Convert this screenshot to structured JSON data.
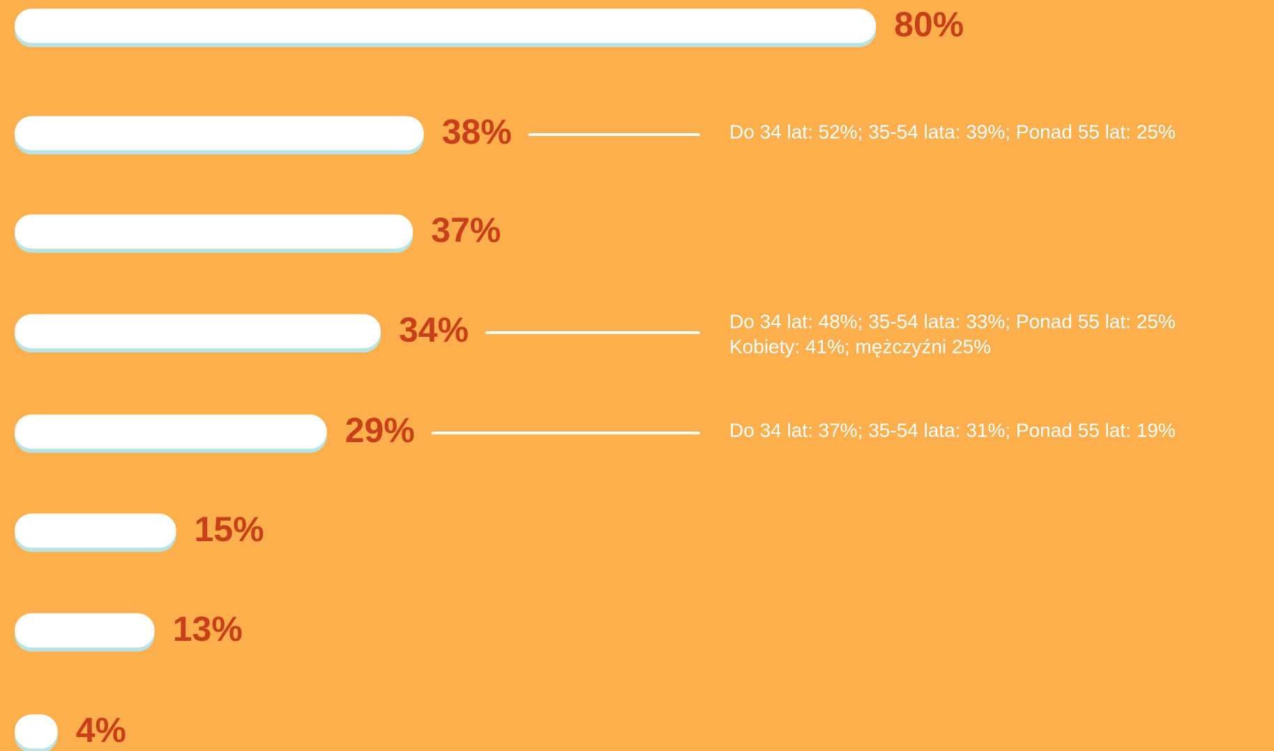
{
  "chart_data": {
    "type": "bar",
    "orientation": "horizontal",
    "categories": [
      null,
      null,
      null,
      null,
      null,
      null,
      null,
      null
    ],
    "values": [
      80,
      38,
      37,
      34,
      29,
      15,
      13,
      4
    ],
    "value_labels": [
      "80%",
      "38%",
      "37%",
      "34%",
      "29%",
      "15%",
      "13%",
      "4%"
    ],
    "color": "#ffffff",
    "label_color": "#c8401a",
    "annotations": [
      null,
      [
        "Do 34 lat: 52%; 35-54 lata: 39%; Ponad 55 lat: 25%"
      ],
      null,
      [
        "Do 34 lat: 48%; 35-54 lata: 33%; Ponad 55 lat: 25%",
        "Kobiety: 41%; mężczyźni 25%"
      ],
      [
        "Do 34 lat: 37%; 35-54 lata: 31%; Ponad 55 lat: 19%"
      ],
      null,
      null,
      null
    ]
  }
}
